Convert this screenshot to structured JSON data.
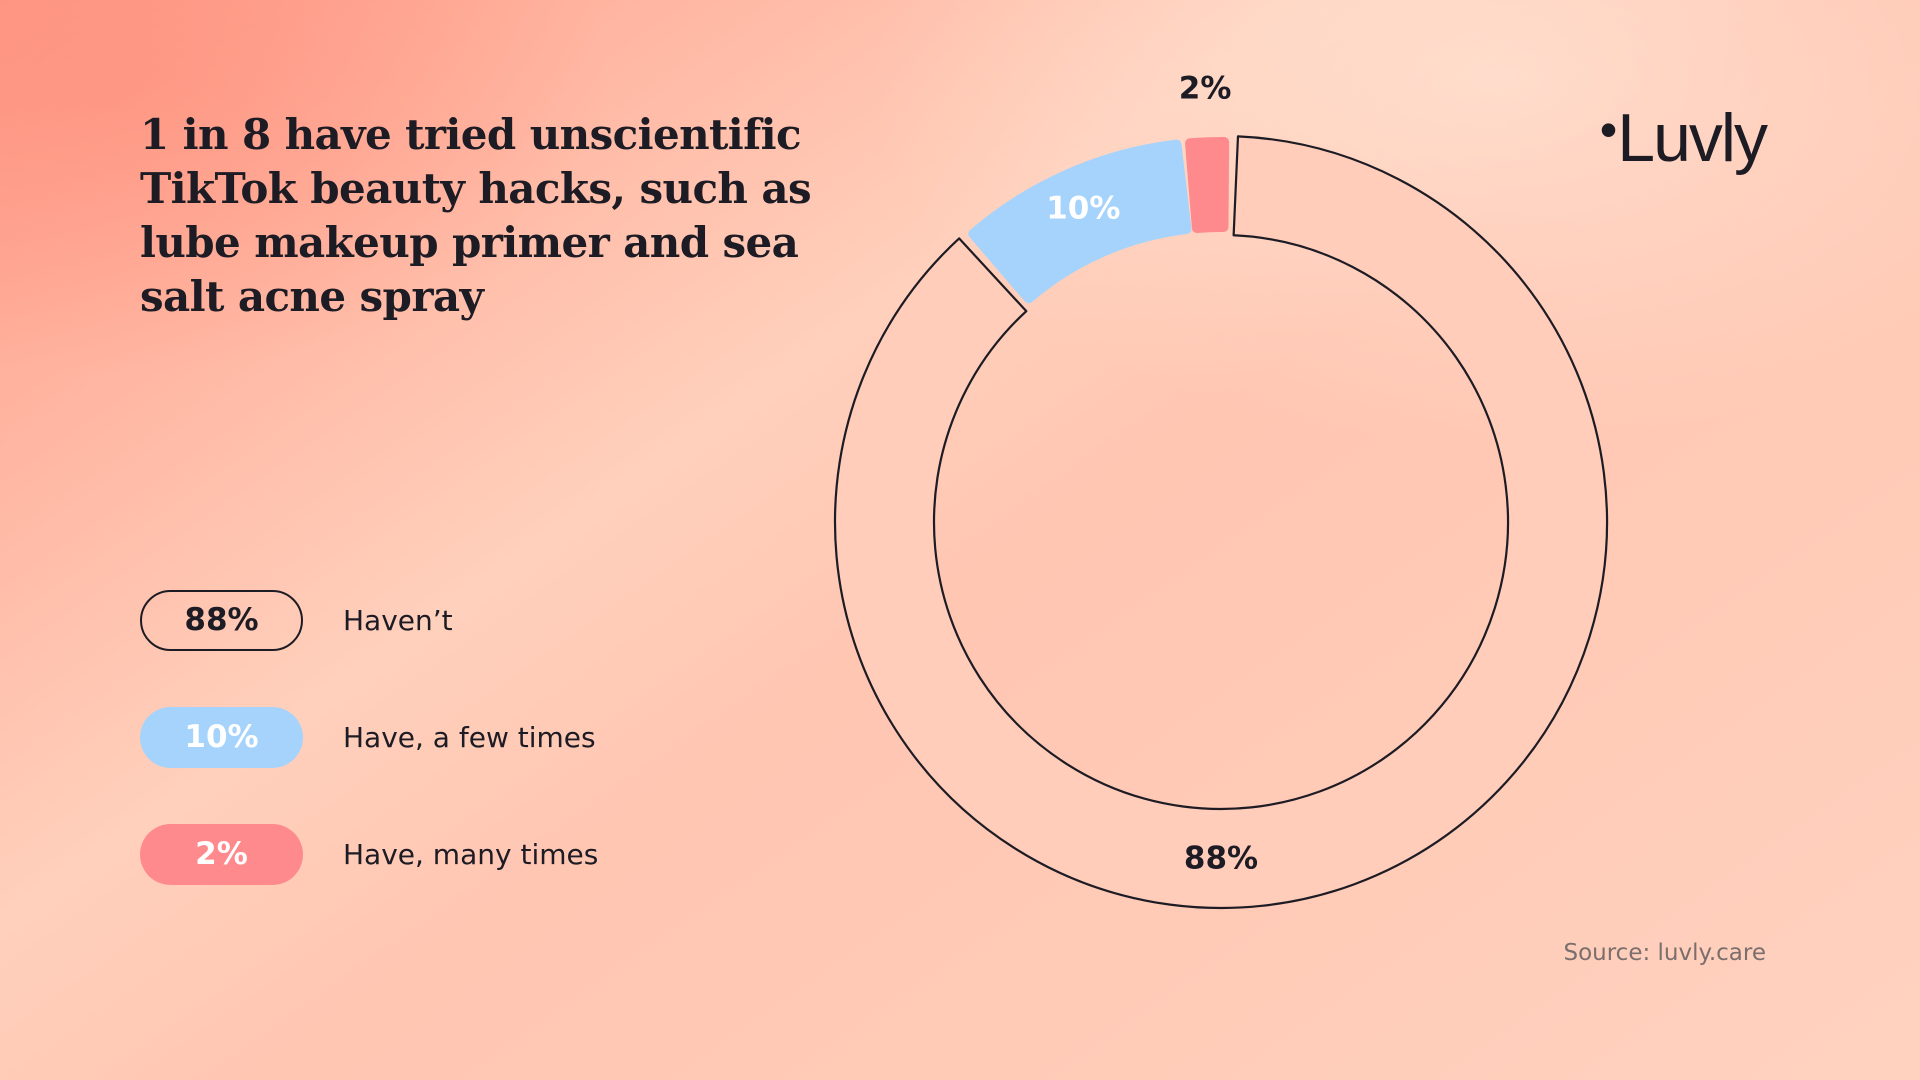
{
  "title": "1 in 8 have tried unscientific TikTok beauty hacks, such as lube makeup primer and sea salt acne spray",
  "brand": {
    "logo_text": "Luvly"
  },
  "source": "Source: luvly.care",
  "chart_data": {
    "type": "pie",
    "variant": "donut",
    "slices": [
      {
        "label": "Haven’t",
        "value": 88,
        "value_label": "88%",
        "color": "#ffcdb9",
        "stroke": "#1d1b24",
        "text_color": "#1d1b24"
      },
      {
        "label": "Have, a few times",
        "value": 10,
        "value_label": "10%",
        "color": "#a6d3fc",
        "stroke": "none",
        "text_color": "#ffffff"
      },
      {
        "label": "Have, many times",
        "value": 2,
        "value_label": "2%",
        "color": "#ff8a8e",
        "stroke": "none",
        "text_color": "#ffffff"
      }
    ],
    "legend_position": "left"
  }
}
